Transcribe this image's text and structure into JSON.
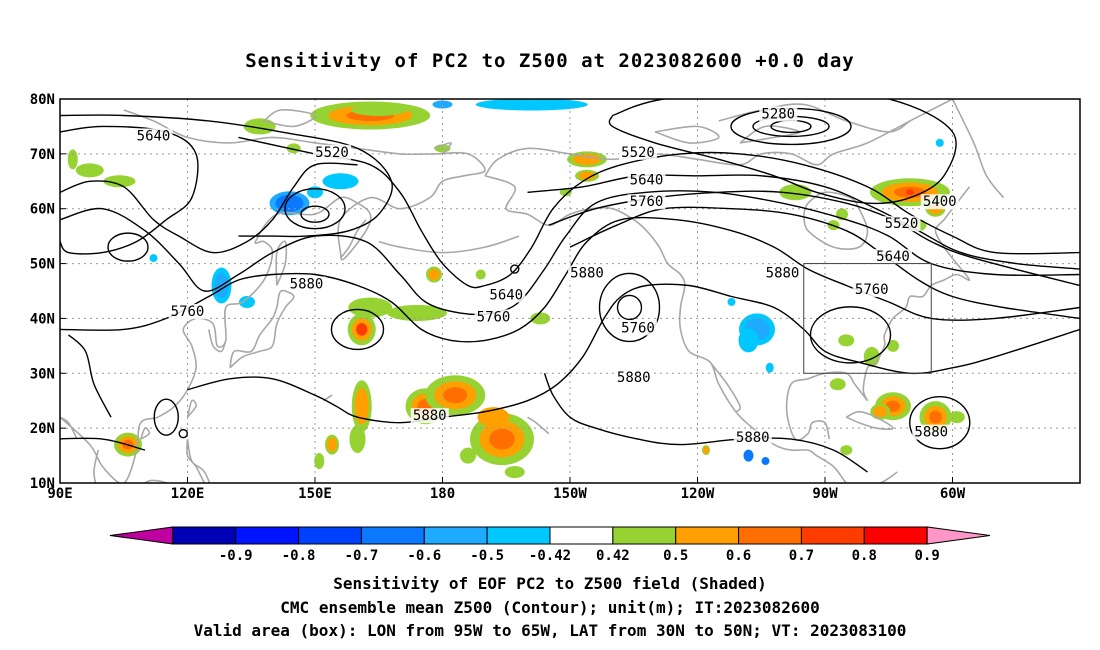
{
  "title": "Sensitivity of PC2 to Z500 at 2023082600 +0.0 day",
  "lat_labels": [
    {
      "lat": 80,
      "text": "80N"
    },
    {
      "lat": 70,
      "text": "70N"
    },
    {
      "lat": 60,
      "text": "60N"
    },
    {
      "lat": 50,
      "text": "50N"
    },
    {
      "lat": 40,
      "text": "40N"
    },
    {
      "lat": 30,
      "text": "30N"
    },
    {
      "lat": 20,
      "text": "20N"
    },
    {
      "lat": 10,
      "text": "10N"
    }
  ],
  "lon_labels": [
    {
      "lon": 90,
      "text": "90E"
    },
    {
      "lon": 120,
      "text": "120E"
    },
    {
      "lon": 150,
      "text": "150E"
    },
    {
      "lon": 180,
      "text": "180"
    },
    {
      "lon": 210,
      "text": "150W"
    },
    {
      "lon": 240,
      "text": "120W"
    },
    {
      "lon": 270,
      "text": "90W"
    },
    {
      "lon": 300,
      "text": "60W"
    }
  ],
  "contour_labels": [
    {
      "text": "5280",
      "lon": 259,
      "lat": 77
    },
    {
      "text": "5640",
      "lon": 112,
      "lat": 73
    },
    {
      "text": "5520",
      "lon": 154,
      "lat": 70
    },
    {
      "text": "5520",
      "lon": 226,
      "lat": 70
    },
    {
      "text": "5640",
      "lon": 228,
      "lat": 65
    },
    {
      "text": "5760",
      "lon": 228,
      "lat": 61
    },
    {
      "text": "5400",
      "lon": 297,
      "lat": 61
    },
    {
      "text": "5520",
      "lon": 288,
      "lat": 57
    },
    {
      "text": "5640",
      "lon": 286,
      "lat": 51
    },
    {
      "text": "5880",
      "lon": 214,
      "lat": 48
    },
    {
      "text": "5880",
      "lon": 260,
      "lat": 48
    },
    {
      "text": "5880",
      "lon": 148,
      "lat": 46
    },
    {
      "text": "5760",
      "lon": 281,
      "lat": 45
    },
    {
      "text": "5640",
      "lon": 195,
      "lat": 44
    },
    {
      "text": "5760",
      "lon": 192,
      "lat": 40
    },
    {
      "text": "5760",
      "lon": 120,
      "lat": 41
    },
    {
      "text": "5760",
      "lon": 226,
      "lat": 38
    },
    {
      "text": "5880",
      "lon": 225,
      "lat": 29
    },
    {
      "text": "5880",
      "lon": 177,
      "lat": 22
    },
    {
      "text": "5880",
      "lon": 253,
      "lat": 18
    },
    {
      "text": "5880",
      "lon": 295,
      "lat": 19
    }
  ],
  "valid_box": {
    "lon_min": 265,
    "lon_max": 295,
    "lat_min": 30,
    "lat_max": 50
  },
  "colorbar": {
    "colors": [
      "#bf00a0",
      "#0000b4",
      "#0014ff",
      "#0040ff",
      "#0a78ff",
      "#1eaaff",
      "#00c8ff",
      "#ffffff",
      "#96d232",
      "#ffa000",
      "#ff6e00",
      "#ff3c00",
      "#ff0000",
      "#ff96c8"
    ],
    "labels": [
      "-0.9",
      "-0.8",
      "-0.7",
      "-0.6",
      "-0.5",
      "-0.42",
      "0.42",
      "0.5",
      "0.6",
      "0.7",
      "0.8",
      "0.9"
    ]
  },
  "captions": {
    "line1": "Sensitivity of EOF PC2 to Z500 field (Shaded)",
    "line2": "CMC ensemble mean Z500 (Contour); unit(m); IT:2023082600",
    "line3": "Valid area (box): LON from 95W to 65W, LAT from 30N to 50N; VT: 2023083100"
  }
}
